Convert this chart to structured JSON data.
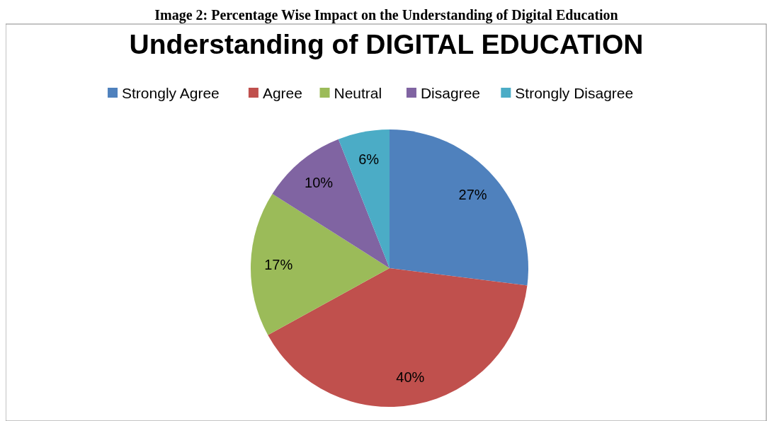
{
  "chart_data": {
    "type": "pie",
    "title": "Understanding of DIGITAL EDUCATION",
    "annotations": [
      "Image 2: Percentage Wise Impact on the Understanding of Digital Education"
    ],
    "categories": [
      "Strongly Agree",
      "Agree",
      "Neutral",
      "Disagree",
      "Strongly Disagree"
    ],
    "values": [
      27,
      40,
      17,
      10,
      6
    ],
    "colors": [
      "#4f81bd",
      "#c0504d",
      "#9bbb59",
      "#8064a2",
      "#4bacc6"
    ],
    "value_labels": [
      "27%",
      "40%",
      "17%",
      "10%",
      "6%"
    ],
    "legend": "top"
  }
}
